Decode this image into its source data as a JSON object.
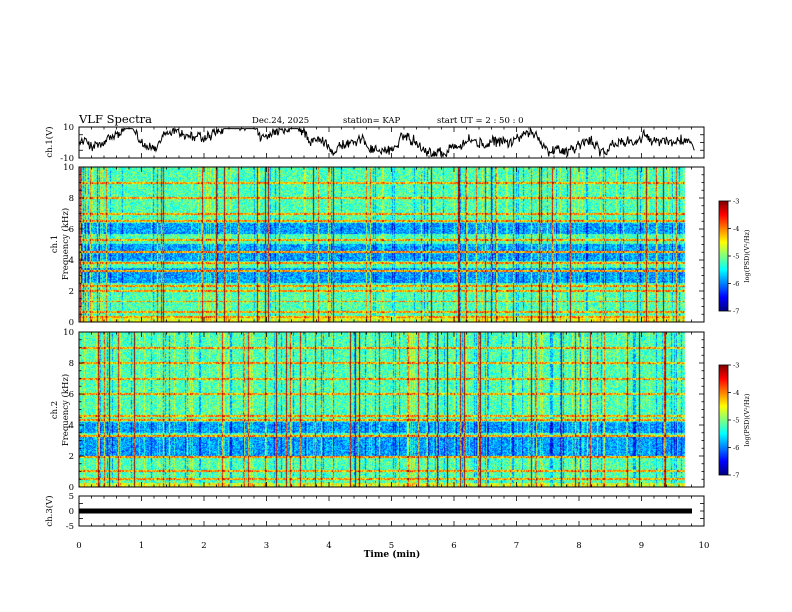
{
  "header": {
    "title": "VLF Spectra",
    "date": "Dec.24, 2025",
    "station": "station= KAP",
    "start": "start  UT =   2  : 50 : 0"
  },
  "chart_data": [
    {
      "type": "line",
      "name": "ch1-waveform",
      "ylabel": "ch.1(V)",
      "ylim": [
        -10,
        10
      ],
      "ytick_labels": [
        "10",
        "-10"
      ],
      "x_range_min": [
        0,
        9.85
      ],
      "note": "noisy trace with mean near 0 V, amplitude roughly +/-6 V"
    },
    {
      "type": "heatmap",
      "name": "ch1-spectrogram",
      "ylabel": "ch.1\nFrequency (kHz)",
      "xlim": [
        0,
        10
      ],
      "ylim": [
        0,
        10
      ],
      "ytick_labels": [
        "0",
        "2",
        "4",
        "6",
        "8",
        "10"
      ],
      "data_extent_min": 9.85,
      "colorbar": {
        "label": "log(PSD)(V²/Hz)",
        "range": [
          -7,
          -3
        ],
        "tick_labels": [
          "-3",
          "-4",
          "-5",
          "-6",
          "-7"
        ]
      },
      "bands_khz": [
        0.3,
        0.6,
        1.3,
        2.0,
        2.3,
        3.3,
        3.8,
        4.5,
        5.3,
        6.5,
        7.0,
        8.0,
        9.0
      ],
      "low_power_bands_khz": [
        [
          2.5,
          3.5
        ],
        [
          3.9,
          5.0
        ],
        [
          5.7,
          6.4
        ]
      ]
    },
    {
      "type": "heatmap",
      "name": "ch2-spectrogram",
      "ylabel": "ch.2\nFrequency (kHz)",
      "xlim": [
        0,
        10
      ],
      "ylim": [
        0,
        10
      ],
      "ytick_labels": [
        "0",
        "2",
        "4",
        "6",
        "8",
        "10"
      ],
      "data_extent_min": 9.85,
      "colorbar": {
        "label": "log(PSD)(V²/Hz)",
        "range": [
          -7,
          -3
        ],
        "tick_labels": [
          "-3",
          "-4",
          "-5",
          "-6",
          "-7"
        ]
      },
      "bands_khz": [
        0.5,
        1.0,
        1.9,
        3.3,
        4.3,
        4.6,
        6.0,
        7.0,
        8.0,
        9.0
      ],
      "low_power_bands_khz": [
        [
          2.0,
          3.2
        ],
        [
          3.5,
          4.2
        ]
      ]
    },
    {
      "type": "line",
      "name": "ch3-waveform",
      "ylabel": "ch.3(V)",
      "ylim": [
        -5,
        5
      ],
      "ytick_labels": [
        "5",
        "0",
        "-5"
      ],
      "x_range_min": [
        0,
        9.85
      ],
      "note": "flat thick trace near 0 V"
    }
  ],
  "x_axis": {
    "label": "Time (min)",
    "range": [
      0,
      10
    ],
    "tick_labels": [
      "0",
      "1",
      "2",
      "3",
      "4",
      "5",
      "6",
      "7",
      "8",
      "9",
      "10"
    ]
  }
}
